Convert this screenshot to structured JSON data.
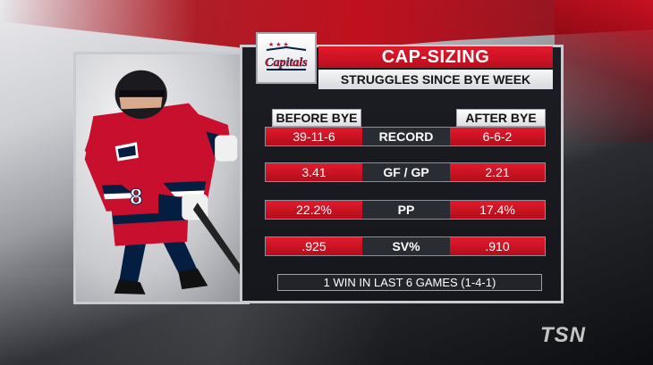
{
  "graphic": {
    "title": "CAP-SIZING",
    "subtitle": "STRUGGLES SINCE BYE WEEK",
    "team_logo_text": "Capitals"
  },
  "columns": {
    "before": "BEFORE BYE",
    "after": "AFTER BYE"
  },
  "rows": [
    {
      "stat": "RECORD",
      "before": "39-11-6",
      "after": "6-6-2"
    },
    {
      "stat": "GF / GP",
      "before": "3.41",
      "after": "2.21"
    },
    {
      "stat": "PP",
      "before": "22.2%",
      "after": "17.4%"
    },
    {
      "stat": "SV%",
      "before": ".925",
      "after": ".910"
    }
  ],
  "footer": "1 WIN IN LAST 6 GAMES (1-4-1)",
  "player": {
    "number": "8"
  },
  "network_logo": "TSN",
  "colors": {
    "accent_red": "#d3172a",
    "panel_dark": "#1b1d23",
    "player_red": "#c8102e",
    "navy": "#041e42"
  }
}
